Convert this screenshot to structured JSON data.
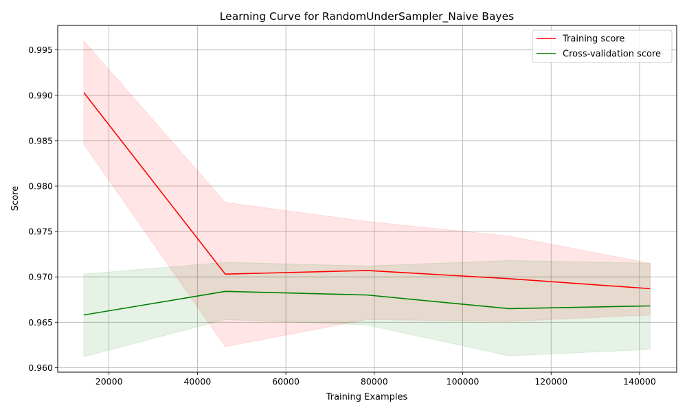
{
  "chart_data": {
    "type": "line",
    "title": "Learning Curve for RandomUnderSampler_Naive Bayes",
    "xlabel": "Training Examples",
    "ylabel": "Score",
    "x": [
      14300,
      46300,
      78400,
      110400,
      142400
    ],
    "xlim": [
      8400,
      148400
    ],
    "ylim": [
      0.9595,
      0.9977
    ],
    "xticks": [
      20000,
      40000,
      60000,
      80000,
      100000,
      120000,
      140000
    ],
    "xtick_labels": [
      "20000",
      "40000",
      "60000",
      "80000",
      "100000",
      "120000",
      "140000"
    ],
    "yticks": [
      0.96,
      0.965,
      0.97,
      0.975,
      0.98,
      0.985,
      0.99,
      0.995
    ],
    "ytick_labels": [
      "0.960",
      "0.965",
      "0.970",
      "0.975",
      "0.980",
      "0.985",
      "0.990",
      "0.995"
    ],
    "grid": true,
    "legend_position": "top-right",
    "series": [
      {
        "name": "Training score",
        "color": "#ff0000",
        "values": [
          0.9903,
          0.9703,
          0.9707,
          0.9698,
          0.9687
        ],
        "band_lower": [
          0.9846,
          0.9623,
          0.9653,
          0.9651,
          0.9658
        ],
        "band_upper": [
          0.996,
          0.9782,
          0.9761,
          0.9745,
          0.9715
        ],
        "band_color": "#ff0000"
      },
      {
        "name": "Cross-validation score",
        "color": "#008000",
        "values": [
          0.9658,
          0.9684,
          0.968,
          0.9665,
          0.9668
        ],
        "band_lower": [
          0.9612,
          0.9653,
          0.9647,
          0.9613,
          0.962
        ],
        "band_upper": [
          0.9703,
          0.9716,
          0.9712,
          0.9718,
          0.9715
        ],
        "band_color": "#008000"
      }
    ]
  }
}
